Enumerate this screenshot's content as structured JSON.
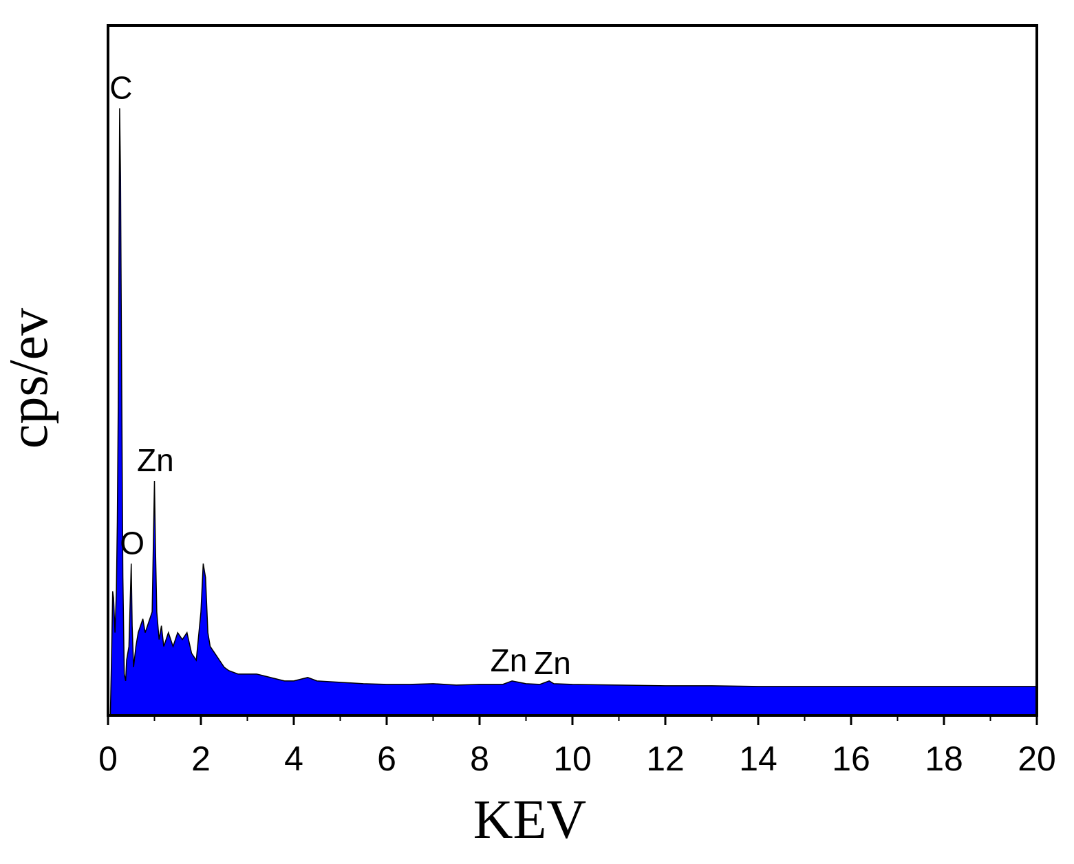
{
  "chart_data": {
    "type": "area",
    "title": "",
    "xlabel": "KEV",
    "ylabel": "cps/ev",
    "xlim": [
      0,
      20
    ],
    "ylim": [
      0,
      1
    ],
    "x_ticks": [
      "0",
      "2",
      "4",
      "6",
      "8",
      "10",
      "12",
      "14",
      "16",
      "18",
      "20"
    ],
    "y_ticks": [],
    "grid": false,
    "legend": "none",
    "colors": {
      "fill": "#0000ff",
      "outline": "#000000",
      "frame": "#000000"
    },
    "series": [
      {
        "x": [
          0.0,
          0.05,
          0.08,
          0.1,
          0.12,
          0.15,
          0.18,
          0.2,
          0.22,
          0.25,
          0.27,
          0.28,
          0.3,
          0.32,
          0.35,
          0.38,
          0.4,
          0.45,
          0.5,
          0.52,
          0.55,
          0.6,
          0.65,
          0.7,
          0.75,
          0.8,
          0.85,
          0.9,
          0.95,
          1.0,
          1.02,
          1.05,
          1.1,
          1.15,
          1.2,
          1.3,
          1.4,
          1.5,
          1.6,
          1.7,
          1.8,
          1.9,
          2.0,
          2.05,
          2.1,
          2.15,
          2.2,
          2.3,
          2.4,
          2.5,
          2.6,
          2.8,
          3.0,
          3.2,
          3.5,
          3.8,
          4.0,
          4.3,
          4.5,
          5.0,
          5.5,
          6.0,
          6.5,
          7.0,
          7.5,
          8.0,
          8.5,
          8.7,
          9.0,
          9.3,
          9.5,
          9.6,
          10.0,
          11.0,
          12.0,
          13.0,
          14.0,
          15.0,
          16.0,
          17.0,
          18.0,
          19.0,
          20.0
        ],
        "y": [
          0.0,
          0.0,
          0.1,
          0.18,
          0.17,
          0.12,
          0.18,
          0.28,
          0.45,
          0.88,
          0.78,
          0.65,
          0.42,
          0.2,
          0.06,
          0.05,
          0.08,
          0.1,
          0.22,
          0.13,
          0.07,
          0.1,
          0.12,
          0.13,
          0.14,
          0.12,
          0.13,
          0.14,
          0.15,
          0.34,
          0.25,
          0.15,
          0.11,
          0.13,
          0.1,
          0.12,
          0.1,
          0.12,
          0.11,
          0.12,
          0.09,
          0.08,
          0.15,
          0.22,
          0.2,
          0.12,
          0.1,
          0.09,
          0.08,
          0.07,
          0.065,
          0.06,
          0.06,
          0.06,
          0.055,
          0.05,
          0.05,
          0.055,
          0.05,
          0.048,
          0.046,
          0.045,
          0.045,
          0.046,
          0.044,
          0.045,
          0.045,
          0.05,
          0.046,
          0.045,
          0.05,
          0.046,
          0.045,
          0.044,
          0.043,
          0.043,
          0.042,
          0.042,
          0.042,
          0.042,
          0.042,
          0.042,
          0.042
        ]
      }
    ],
    "annotations": [
      {
        "text": "C",
        "x": 0.28
      },
      {
        "text": "O",
        "x": 0.52
      },
      {
        "text": "Zn",
        "x": 1.02
      },
      {
        "text": "Zn",
        "x": 8.63
      },
      {
        "text": "Zn",
        "x": 9.57
      }
    ]
  }
}
